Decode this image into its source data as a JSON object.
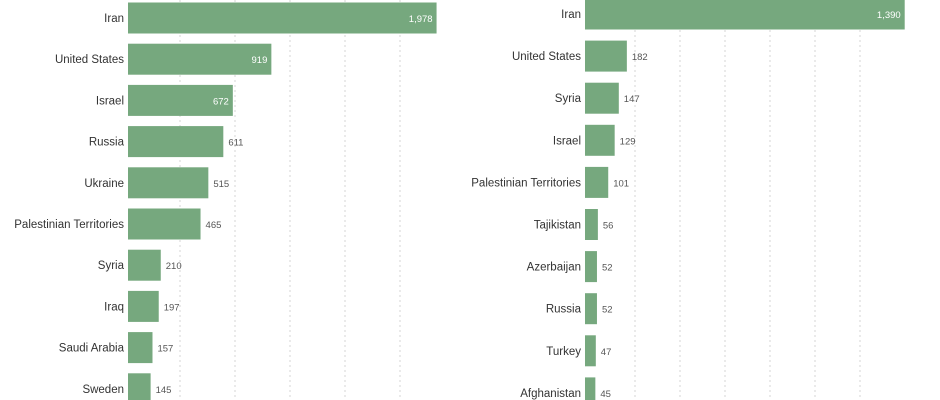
{
  "colors": {
    "bar": "#76a87e",
    "grid": "#d6d6d6",
    "text": "#333333",
    "value": "#555555"
  },
  "chart_data": [
    {
      "type": "bar",
      "orientation": "horizontal",
      "categories": [
        "Iran",
        "United States",
        "Israel",
        "Russia",
        "Ukraine",
        "Palestinian Territories",
        "Syria",
        "Iraq",
        "Saudi Arabia",
        "Sweden"
      ],
      "values": [
        1978,
        919,
        672,
        611,
        515,
        465,
        210,
        197,
        157,
        145
      ],
      "value_labels": [
        "1,978",
        "919",
        "672",
        "611",
        "515",
        "465",
        "210",
        "197",
        "157",
        "145"
      ],
      "xlim": [
        0,
        2000
      ],
      "grid": true
    },
    {
      "type": "bar",
      "orientation": "horizontal",
      "categories": [
        "Iran",
        "United States",
        "Syria",
        "Israel",
        "Palestinian Territories",
        "Tajikistan",
        "Azerbaijan",
        "Russia",
        "Turkey",
        "Afghanistan"
      ],
      "values": [
        1390,
        182,
        147,
        129,
        101,
        56,
        52,
        52,
        47,
        45
      ],
      "value_labels": [
        "1,390",
        "182",
        "147",
        "129",
        "101",
        "56",
        "52",
        "52",
        "47",
        "45"
      ],
      "xlim": [
        0,
        1400
      ],
      "grid": true
    }
  ]
}
